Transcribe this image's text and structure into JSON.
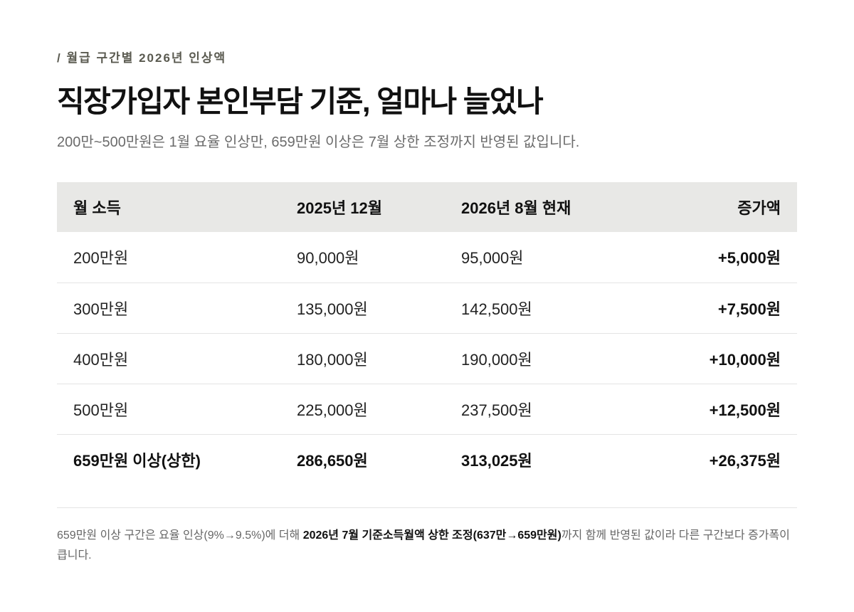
{
  "eyebrow": "/ 월급 구간별 2026년 인상액",
  "title": "직장가입자 본인부담 기준, 얼마나 늘었나",
  "subtitle": "200만~500만원은 1월 요율 인상만, 659만원 이상은 7월 상한 조정까지 반영된 값입니다.",
  "table": {
    "headers": {
      "income": "월 소득",
      "dec_2025": "2025년 12월",
      "aug_2026": "2026년 8월 현재",
      "increase": "증가액"
    },
    "rows": [
      {
        "income": "200만원",
        "dec_2025": "90,000원",
        "aug_2026": "95,000원",
        "increase": "+5,000원"
      },
      {
        "income": "300만원",
        "dec_2025": "135,000원",
        "aug_2026": "142,500원",
        "increase": "+7,500원"
      },
      {
        "income": "400만원",
        "dec_2025": "180,000원",
        "aug_2026": "190,000원",
        "increase": "+10,000원"
      },
      {
        "income": "500만원",
        "dec_2025": "225,000원",
        "aug_2026": "237,500원",
        "increase": "+12,500원"
      },
      {
        "income": "659만원 이상(상한)",
        "dec_2025": "286,650원",
        "aug_2026": "313,025원",
        "increase": "+26,375원"
      }
    ]
  },
  "footnote": {
    "prefix": "659만원 이상 구간은 요율 인상(9%→9.5%)에 더해 ",
    "emphasis": "2026년 7월 기준소득월액 상한 조정(637만→659만원)",
    "suffix": "까지 함께 반영된 값이라 다른 구간보다 증가폭이 큽니다."
  },
  "colors": {
    "text": "#111111",
    "muted": "#6b6b6b",
    "eyebrow": "#5a5a50",
    "header_bg": "#e8e8e6",
    "rule": "#e4e4e4",
    "background": "#ffffff"
  }
}
